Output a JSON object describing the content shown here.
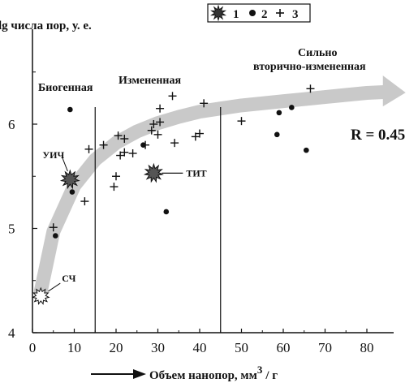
{
  "chart_data": {
    "type": "scatter",
    "ylabel": "lg числа пор, у. е.",
    "xlabel": "Объем нанопор, мм",
    "xlabel_sup": "3",
    "xlabel_tail": "/ г",
    "xlim": [
      0,
      85
    ],
    "ylim": [
      4,
      6.9
    ],
    "x_ticks": [
      0,
      10,
      20,
      30,
      40,
      50,
      60,
      70,
      80
    ],
    "y_ticks": [
      4,
      5,
      6
    ],
    "legend": [
      {
        "marker": "star",
        "label": "1"
      },
      {
        "marker": "dot",
        "label": "2"
      },
      {
        "marker": "plus",
        "label": "3"
      }
    ],
    "zone_boundaries_x": [
      15,
      45
    ],
    "zones": [
      {
        "label": "Биогенная"
      },
      {
        "label": "Измененная"
      },
      {
        "label_line1": "Сильно",
        "label_line2": "вторично-измененная"
      }
    ],
    "r_label": "R = 0.45",
    "series": [
      {
        "marker": "star",
        "points": [
          {
            "x": 9,
            "y": 5.47,
            "label": "УИЧ"
          },
          {
            "x": 29,
            "y": 5.53,
            "label": "ТИТ"
          },
          {
            "x": 2,
            "y": 4.35,
            "label": "СЧ"
          }
        ]
      },
      {
        "marker": "dot",
        "points": [
          {
            "x": 9,
            "y": 6.14
          },
          {
            "x": 9.5,
            "y": 5.35
          },
          {
            "x": 5.5,
            "y": 4.93
          },
          {
            "x": 26.5,
            "y": 5.8
          },
          {
            "x": 32,
            "y": 5.16
          },
          {
            "x": 58.5,
            "y": 5.9
          },
          {
            "x": 59,
            "y": 6.11
          },
          {
            "x": 62,
            "y": 6.16
          },
          {
            "x": 65.5,
            "y": 5.75
          }
        ]
      },
      {
        "marker": "plus",
        "points": [
          {
            "x": 5,
            "y": 5.01
          },
          {
            "x": 12.5,
            "y": 5.26
          },
          {
            "x": 13.5,
            "y": 5.76
          },
          {
            "x": 17,
            "y": 5.8
          },
          {
            "x": 19.5,
            "y": 5.4
          },
          {
            "x": 20,
            "y": 5.5
          },
          {
            "x": 20.5,
            "y": 5.89
          },
          {
            "x": 21,
            "y": 5.7
          },
          {
            "x": 22,
            "y": 5.73
          },
          {
            "x": 22,
            "y": 5.86
          },
          {
            "x": 24,
            "y": 5.72
          },
          {
            "x": 27,
            "y": 5.8
          },
          {
            "x": 28.5,
            "y": 5.94
          },
          {
            "x": 29,
            "y": 6.0
          },
          {
            "x": 30,
            "y": 5.9
          },
          {
            "x": 30.5,
            "y": 6.02
          },
          {
            "x": 30.5,
            "y": 6.15
          },
          {
            "x": 33.5,
            "y": 6.27
          },
          {
            "x": 34,
            "y": 5.82
          },
          {
            "x": 39,
            "y": 5.88
          },
          {
            "x": 40,
            "y": 5.91
          },
          {
            "x": 41,
            "y": 6.2
          },
          {
            "x": 50,
            "y": 6.03
          },
          {
            "x": 66.5,
            "y": 6.34
          }
        ]
      }
    ],
    "trend_curve": {
      "x": [
        2,
        5,
        10,
        15,
        20,
        25,
        30,
        35,
        40,
        45,
        50,
        55,
        60,
        65,
        70,
        75,
        80,
        85
      ],
      "y": [
        4.4,
        4.97,
        5.41,
        5.66,
        5.82,
        5.93,
        6.01,
        6.07,
        6.12,
        6.15,
        6.18,
        6.2,
        6.22,
        6.24,
        6.26,
        6.28,
        6.3,
        6.31
      ]
    }
  }
}
